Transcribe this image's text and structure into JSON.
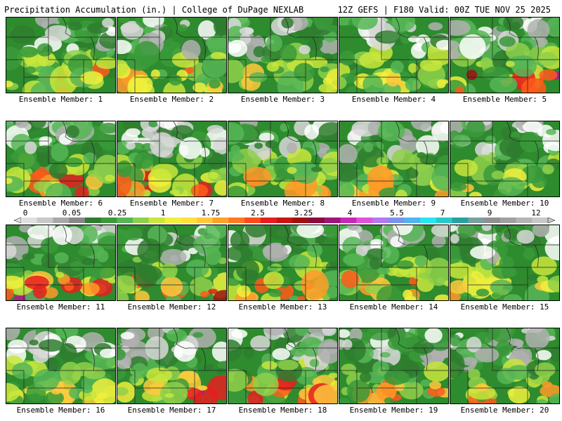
{
  "header": {
    "title": "Precipitation Accumulation (in.) | College of DuPage NEXLAB",
    "valid": "12Z GEFS | F180 Valid: 00Z TUE NOV 25 2025"
  },
  "colorbar": {
    "labels": [
      "0",
      "0.05",
      "0.25",
      "1",
      "1.75",
      "2.5",
      "3.25",
      "4",
      "5.5",
      "7",
      "9",
      "12"
    ],
    "colors": [
      "#e0e0e0",
      "#c8c8c8",
      "#a8a8a8",
      "#888888",
      "#2e7d2e",
      "#3a9a3a",
      "#56b656",
      "#8fd04a",
      "#c8e63c",
      "#f0f03c",
      "#ffe03c",
      "#ffc83c",
      "#ffa028",
      "#ff7820",
      "#ff4a1a",
      "#e61e1e",
      "#c81414",
      "#a01010",
      "#8c0a3c",
      "#a0147a",
      "#c828b4",
      "#e050dc",
      "#b478f0",
      "#7894f0",
      "#50b4f0",
      "#28e6f0",
      "#28c8c8",
      "#28a0a0",
      "#78a0a0",
      "#909090",
      "#a0a0a0",
      "#b4b4b4",
      "#c8c8c8"
    ]
  },
  "panels": [
    {
      "label": "Ensemble Member: 1",
      "pattern": 1
    },
    {
      "label": "Ensemble Member: 2",
      "pattern": 2
    },
    {
      "label": "Ensemble Member: 3",
      "pattern": 3
    },
    {
      "label": "Ensemble Member: 4",
      "pattern": 4
    },
    {
      "label": "Ensemble Member: 5",
      "pattern": 5
    },
    {
      "label": "Ensemble Member: 6",
      "pattern": 6
    },
    {
      "label": "Ensemble Member: 7",
      "pattern": 7
    },
    {
      "label": "Ensemble Member: 8",
      "pattern": 8
    },
    {
      "label": "Ensemble Member: 9",
      "pattern": 9
    },
    {
      "label": "Ensemble Member: 10",
      "pattern": 10
    },
    {
      "label": "Ensemble Member: 11",
      "pattern": 11
    },
    {
      "label": "Ensemble Member: 12",
      "pattern": 12
    },
    {
      "label": "Ensemble Member: 13",
      "pattern": 13
    },
    {
      "label": "Ensemble Member: 14",
      "pattern": 14
    },
    {
      "label": "Ensemble Member: 15",
      "pattern": 15
    },
    {
      "label": "Ensemble Member: 16",
      "pattern": 16
    },
    {
      "label": "Ensemble Member: 17",
      "pattern": 17
    },
    {
      "label": "Ensemble Member: 18",
      "pattern": 18
    },
    {
      "label": "Ensemble Member: 19",
      "pattern": 19
    },
    {
      "label": "Ensemble Member: 20",
      "pattern": 20
    }
  ]
}
